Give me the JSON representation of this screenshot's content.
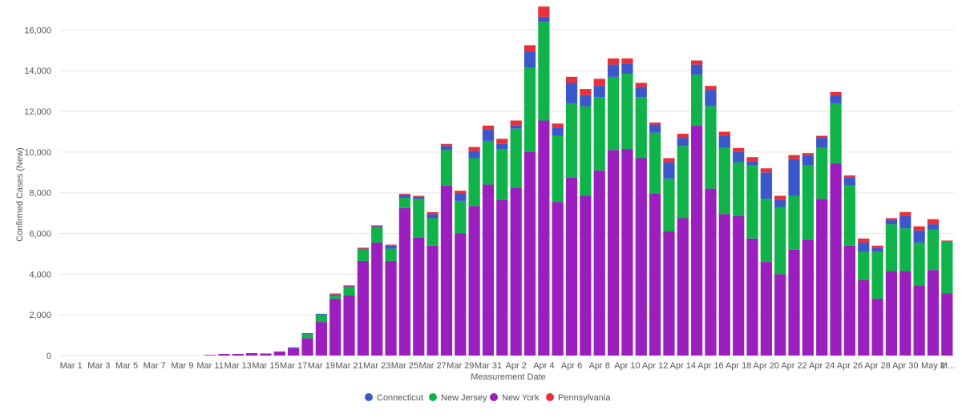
{
  "chart_data": {
    "type": "bar",
    "stacked": true,
    "title": "",
    "xlabel": "Measurement Date",
    "ylabel": "Confirmed Cases (New)",
    "ylim": [
      0,
      17000
    ],
    "yticks": [
      0,
      2000,
      4000,
      6000,
      8000,
      10000,
      12000,
      14000,
      16000
    ],
    "ytick_labels": [
      "0",
      "2,000",
      "4,000",
      "6,000",
      "8,000",
      "10,000",
      "12,000",
      "14,000",
      "16,000"
    ],
    "grid": true,
    "legend_position": "bottom",
    "categories": [
      "Mar 1",
      "Mar 2",
      "Mar 3",
      "Mar 4",
      "Mar 5",
      "Mar 6",
      "Mar 7",
      "Mar 8",
      "Mar 9",
      "Mar 10",
      "Mar 11",
      "Mar 12",
      "Mar 13",
      "Mar 14",
      "Mar 15",
      "Mar 16",
      "Mar 17",
      "Mar 18",
      "Mar 19",
      "Mar 20",
      "Mar 21",
      "Mar 22",
      "Mar 23",
      "Mar 24",
      "Mar 25",
      "Mar 26",
      "Mar 27",
      "Mar 28",
      "Mar 29",
      "Mar 30",
      "Mar 31",
      "Apr 1",
      "Apr 2",
      "Apr 3",
      "Apr 4",
      "Apr 5",
      "Apr 6",
      "Apr 7",
      "Apr 8",
      "Apr 9",
      "Apr 10",
      "Apr 11",
      "Apr 12",
      "Apr 13",
      "Apr 14",
      "Apr 15",
      "Apr 16",
      "Apr 17",
      "Apr 18",
      "Apr 19",
      "Apr 20",
      "Apr 21",
      "Apr 22",
      "Apr 23",
      "Apr 24",
      "Apr 25",
      "Apr 26",
      "Apr 27",
      "Apr 28",
      "Apr 29",
      "Apr 30",
      "May 1",
      "May 2",
      "May 3"
    ],
    "x_tick_labels": [
      "Mar 1",
      "Mar 3",
      "Mar 5",
      "Mar 7",
      "Mar 9",
      "Mar 11",
      "Mar 13",
      "Mar 15",
      "Mar 17",
      "Mar 19",
      "Mar 21",
      "Mar 23",
      "Mar 25",
      "Mar 27",
      "Mar 29",
      "Mar 31",
      "Apr 2",
      "Apr 4",
      "Apr 6",
      "Apr 8",
      "Apr 10",
      "Apr 12",
      "Apr 14",
      "Apr 16",
      "Apr 18",
      "Apr 20",
      "Apr 22",
      "Apr 24",
      "Apr 26",
      "Apr 28",
      "Apr 30",
      "May 2",
      "M..."
    ],
    "series": [
      {
        "name": "New York",
        "color": "#9b1fbf",
        "values": [
          0,
          0,
          0,
          0,
          0,
          0,
          0,
          0,
          0,
          0,
          30,
          80,
          80,
          120,
          100,
          200,
          350,
          850,
          1650,
          2800,
          2950,
          4650,
          5550,
          4650,
          7250,
          5800,
          5400,
          8350,
          6000,
          7350,
          8400,
          7650,
          8250,
          10000,
          11550,
          7550,
          8750,
          7850,
          9100,
          10100,
          10150,
          9700,
          7950,
          6100,
          6750,
          11300,
          8200,
          6950,
          6850,
          5750,
          4600,
          4000,
          5200,
          5700,
          7700,
          9450,
          5400,
          3700,
          2800,
          4150,
          4150,
          3450,
          4200,
          3050
        ]
      },
      {
        "name": "New Jersey",
        "color": "#0fb349",
        "values": [
          0,
          0,
          0,
          0,
          0,
          0,
          0,
          0,
          0,
          0,
          0,
          0,
          0,
          0,
          0,
          0,
          0,
          200,
          350,
          150,
          400,
          550,
          750,
          600,
          500,
          1900,
          1350,
          1750,
          1600,
          2350,
          2150,
          2500,
          2900,
          4150,
          4850,
          3250,
          3650,
          4400,
          3600,
          3600,
          3700,
          3000,
          3000,
          2600,
          3550,
          2500,
          4050,
          3250,
          2650,
          3600,
          3100,
          3300,
          2650,
          3650,
          2500,
          2950,
          2950,
          1400,
          2300,
          2300,
          2100,
          2100,
          2000,
          2550
        ]
      },
      {
        "name": "Connecticut",
        "color": "#3a58c9",
        "values": [
          0,
          0,
          0,
          0,
          0,
          0,
          0,
          0,
          0,
          0,
          0,
          0,
          0,
          0,
          0,
          0,
          50,
          50,
          50,
          50,
          50,
          50,
          50,
          150,
          150,
          100,
          200,
          200,
          350,
          350,
          550,
          250,
          150,
          800,
          250,
          400,
          1000,
          550,
          550,
          600,
          500,
          500,
          400,
          800,
          400,
          500,
          800,
          600,
          500,
          200,
          1300,
          350,
          1800,
          500,
          500,
          350,
          400,
          450,
          200,
          200,
          600,
          600,
          250,
          0
        ]
      },
      {
        "name": "Pennsylvania",
        "color": "#e8303a",
        "values": [
          0,
          0,
          0,
          0,
          0,
          0,
          0,
          0,
          0,
          0,
          0,
          0,
          0,
          0,
          0,
          0,
          0,
          0,
          0,
          50,
          50,
          50,
          50,
          50,
          50,
          50,
          100,
          100,
          150,
          200,
          200,
          250,
          250,
          300,
          500,
          200,
          300,
          300,
          350,
          300,
          250,
          200,
          100,
          200,
          200,
          200,
          200,
          200,
          200,
          200,
          200,
          200,
          200,
          100,
          100,
          200,
          100,
          200,
          100,
          100,
          200,
          200,
          250,
          50
        ]
      }
    ],
    "legend": [
      "Connecticut",
      "New Jersey",
      "New York",
      "Pennsylvania"
    ]
  }
}
